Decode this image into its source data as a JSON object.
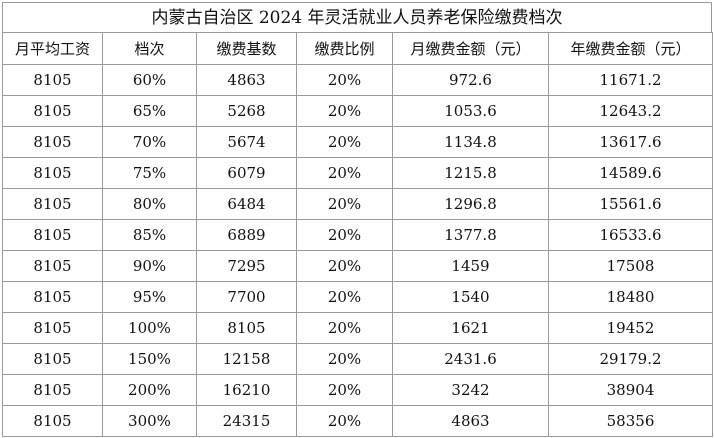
{
  "title": "内蒙古自治区 2024 年灵活就业人员养老保险缴费档次",
  "headers": [
    "月平均工资",
    "档次",
    "缴费基数",
    "缴费比例",
    "月缴费金额（元）",
    "年缴费金额（元）"
  ],
  "rows": [
    [
      "8105",
      "60%",
      "4863",
      "20%",
      "972.6",
      "11671.2"
    ],
    [
      "8105",
      "65%",
      "5268",
      "20%",
      "1053.6",
      "12643.2"
    ],
    [
      "8105",
      "70%",
      "5674",
      "20%",
      "1134.8",
      "13617.6"
    ],
    [
      "8105",
      "75%",
      "6079",
      "20%",
      "1215.8",
      "14589.6"
    ],
    [
      "8105",
      "80%",
      "6484",
      "20%",
      "1296.8",
      "15561.6"
    ],
    [
      "8105",
      "85%",
      "6889",
      "20%",
      "1377.8",
      "16533.6"
    ],
    [
      "8105",
      "90%",
      "7295",
      "20%",
      "1459",
      "17508"
    ],
    [
      "8105",
      "95%",
      "7700",
      "20%",
      "1540",
      "18480"
    ],
    [
      "8105",
      "100%",
      "8105",
      "20%",
      "1621",
      "19452"
    ],
    [
      "8105",
      "150%",
      "12158",
      "20%",
      "2431.6",
      "29179.2"
    ],
    [
      "8105",
      "200%",
      "16210",
      "20%",
      "3242",
      "38904"
    ],
    [
      "8105",
      "300%",
      "24315",
      "20%",
      "4863",
      "58356"
    ]
  ]
}
